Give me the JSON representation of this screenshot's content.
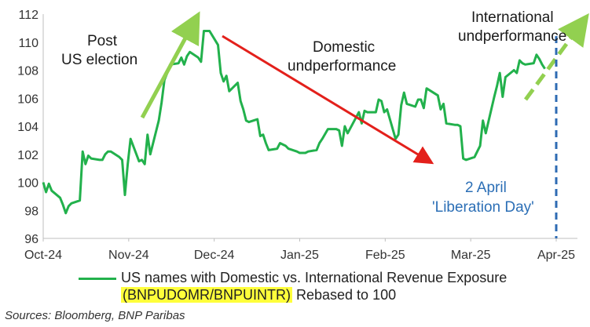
{
  "chart_data": {
    "type": "line",
    "ylim": [
      96,
      112
    ],
    "yticks": [
      96,
      98,
      100,
      102,
      104,
      106,
      108,
      110,
      112
    ],
    "xticks": [
      "Oct-24",
      "Nov-24",
      "Dec-24",
      "Jan-25",
      "Feb-25",
      "Mar-25",
      "Apr-25"
    ],
    "grid": false,
    "series": [
      {
        "name": "US names with Domestic vs. International Revenue Exposure (BNPUDOMR/BNPUINTR) Rebased to 100",
        "color": "#22b14c",
        "x": [
          "2024-10-01",
          "2024-10-02",
          "2024-10-03",
          "2024-10-04",
          "2024-10-07",
          "2024-10-08",
          "2024-10-09",
          "2024-10-10",
          "2024-10-11",
          "2024-10-14",
          "2024-10-15",
          "2024-10-16",
          "2024-10-17",
          "2024-10-18",
          "2024-10-21",
          "2024-10-22",
          "2024-10-23",
          "2024-10-24",
          "2024-10-25",
          "2024-10-28",
          "2024-10-29",
          "2024-10-30",
          "2024-10-31",
          "2024-11-01",
          "2024-11-04",
          "2024-11-05",
          "2024-11-06",
          "2024-11-07",
          "2024-11-08",
          "2024-11-11",
          "2024-11-12",
          "2024-11-13",
          "2024-11-14",
          "2024-11-15",
          "2024-11-18",
          "2024-11-19",
          "2024-11-20",
          "2024-11-21",
          "2024-11-22",
          "2024-11-25",
          "2024-11-26",
          "2024-11-27",
          "2024-11-29",
          "2024-12-02",
          "2024-12-03",
          "2024-12-04",
          "2024-12-05",
          "2024-12-06",
          "2024-12-09",
          "2024-12-10",
          "2024-12-11",
          "2024-12-12",
          "2024-12-13",
          "2024-12-16",
          "2024-12-17",
          "2024-12-18",
          "2024-12-19",
          "2024-12-20",
          "2024-12-23",
          "2024-12-24",
          "2024-12-26",
          "2024-12-27",
          "2024-12-30",
          "2024-12-31",
          "2025-01-02",
          "2025-01-03",
          "2025-01-06",
          "2025-01-07",
          "2025-01-08",
          "2025-01-10",
          "2025-01-13",
          "2025-01-14",
          "2025-01-15",
          "2025-01-16",
          "2025-01-17",
          "2025-01-21",
          "2025-01-22",
          "2025-01-23",
          "2025-01-24",
          "2025-01-27",
          "2025-01-28",
          "2025-01-29",
          "2025-01-30",
          "2025-01-31",
          "2025-02-03",
          "2025-02-04",
          "2025-02-05",
          "2025-02-06",
          "2025-02-07",
          "2025-02-10",
          "2025-02-11",
          "2025-02-12",
          "2025-02-13",
          "2025-02-14",
          "2025-02-18",
          "2025-02-19",
          "2025-02-20",
          "2025-02-21",
          "2025-02-24",
          "2025-02-25",
          "2025-02-26",
          "2025-02-27",
          "2025-02-28",
          "2025-03-03",
          "2025-03-04",
          "2025-03-05",
          "2025-03-06",
          "2025-03-07",
          "2025-03-10",
          "2025-03-11",
          "2025-03-12",
          "2025-03-13",
          "2025-03-14",
          "2025-03-17",
          "2025-03-18",
          "2025-03-19",
          "2025-03-20",
          "2025-03-21",
          "2025-03-24",
          "2025-03-25",
          "2025-03-26",
          "2025-03-27",
          "2025-03-28"
        ],
        "values": [
          100.0,
          99.3,
          99.9,
          99.4,
          98.9,
          98.4,
          97.8,
          98.3,
          98.5,
          98.7,
          102.2,
          101.3,
          101.9,
          101.7,
          101.6,
          101.6,
          102.0,
          102.2,
          102.2,
          101.8,
          101.6,
          99.1,
          101.3,
          103.1,
          101.5,
          101.6,
          101.3,
          103.4,
          102.0,
          104.4,
          105.7,
          107.3,
          107.8,
          108.4,
          108.5,
          108.9,
          108.4,
          109.0,
          109.3,
          108.9,
          108.6,
          110.8,
          110.8,
          109.8,
          107.8,
          107.2,
          107.6,
          106.5,
          107.1,
          105.8,
          105.2,
          104.4,
          104.3,
          104.5,
          103.3,
          103.4,
          102.8,
          102.3,
          102.4,
          102.8,
          102.6,
          102.4,
          102.2,
          102.1,
          102.1,
          102.2,
          102.3,
          102.8,
          103.1,
          103.8,
          103.8,
          103.7,
          102.6,
          104.0,
          103.5,
          105.0,
          104.2,
          105.1,
          105.0,
          105.0,
          105.9,
          105.8,
          105.0,
          105.2,
          103.1,
          103.4,
          105.5,
          106.4,
          105.6,
          105.4,
          105.9,
          105.9,
          105.3,
          106.7,
          106.2,
          105.2,
          105.6,
          104.2,
          104.1,
          104.1,
          104.0,
          101.7,
          101.6,
          101.8,
          102.2,
          102.6,
          104.4,
          103.5,
          106.1,
          106.9,
          107.8,
          106.1,
          107.5,
          108.0,
          107.8,
          108.7,
          108.5,
          108.4,
          108.5,
          109.1,
          108.8,
          108.4,
          108.1
        ]
      }
    ],
    "annotations": [
      {
        "text": "Post",
        "value": ""
      },
      {
        "text": "US election"
      },
      {
        "text": "Domestic"
      },
      {
        "text": "undperformance"
      },
      {
        "text": "International"
      },
      {
        "text": "undperformance"
      },
      {
        "text": "2 April"
      },
      {
        "text": "'Liberation Day'"
      }
    ],
    "vline_date": "2025-04-02",
    "colors": {
      "line": "#22b14c",
      "arrow_up": "#92d050",
      "arrow_down": "#e3201b",
      "vline": "#2e6bb3",
      "highlight": "#ffff3b"
    }
  },
  "legend": {
    "line1": "US names with Domestic vs. International Revenue Exposure",
    "line2_highlight": "(BNPUDOMR/BNPUINTR)",
    "line2_rest": " Rebased to 100"
  },
  "source": "Sources: Bloomberg, BNP Paribas"
}
